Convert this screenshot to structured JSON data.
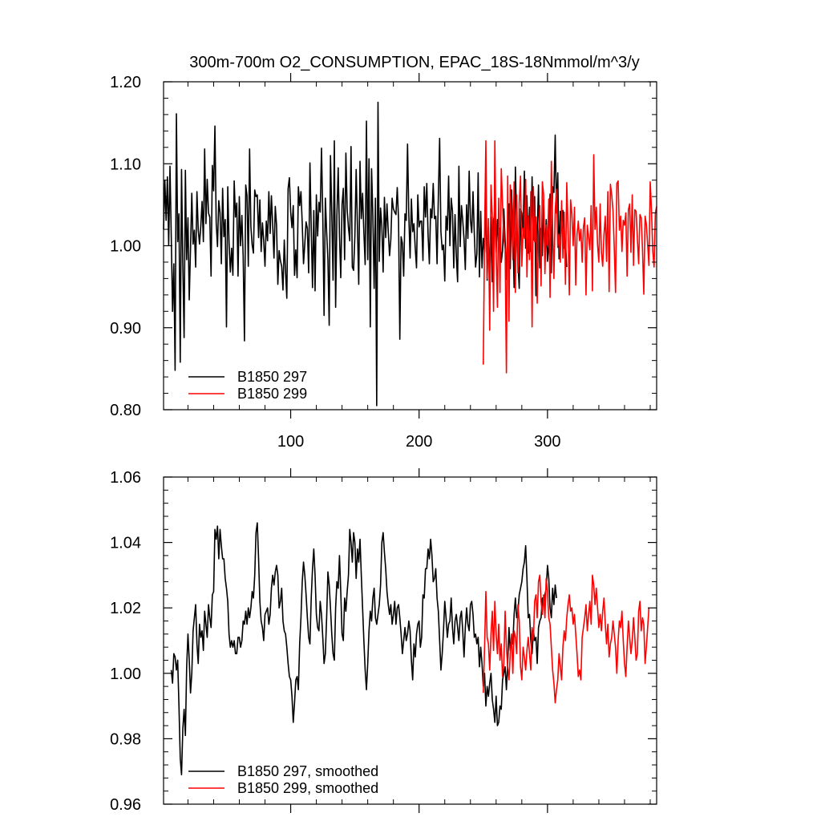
{
  "chart_data": [
    {
      "type": "line",
      "title": "300m-700m O2_CONSUMPTION, EPAC_18S-18Nmmol/m^3/y",
      "xlabel": "",
      "ylabel": "",
      "xlim": [
        1,
        385
      ],
      "ylim": [
        0.8,
        1.2
      ],
      "yticks": [
        "0.80",
        "0.90",
        "1.00",
        "1.10",
        "1.20"
      ],
      "xticks": [
        "100",
        "200",
        "300"
      ],
      "legend_position": "bottom-left",
      "series": [
        {
          "name": "B1850 297",
          "color": "#000000",
          "x_start": 1,
          "values": [
            1.02,
            1.08,
            1.031,
            1.084,
            1.001,
            1.097,
            1.012,
            0.92,
            0.978,
            0.848,
            1.161,
            1.005,
            1.039,
            0.858,
            1.093,
            0.978,
            0.888,
            1.092,
            0.983,
            1.034,
            0.934,
            0.997,
            1.064,
            1.002,
            1.019,
            0.974,
            1.066,
            1.02,
            1.002,
            1.024,
            1.054,
            1.005,
            1.118,
            1.027,
            1.081,
            1.04,
            1.035,
            0.963,
            1.098,
            1.067,
            1.146,
            1.028,
            0.999,
            1.055,
            1.04,
            0.978,
            1.07,
            1.011,
            1.032,
            0.901,
            1.072,
            1.004,
            0.968,
            0.997,
            0.964,
            1.079,
            1.035,
            1.052,
            0.963,
            1.06,
            1.0,
            1.037,
            0.987,
            0.884,
            1.074,
            1.061,
            0.975,
            1.118,
            1.023,
            1.001,
            0.991,
            1.068,
            1.06,
            1.062,
            1.01,
            1.056,
            0.993,
            1.028,
            1.006,
            0.975,
            1.03,
            1.006,
            1.066,
            1.015,
            1.061,
            1.025,
            0.985,
            1.048,
            1.025,
            0.953,
            0.994,
            0.982,
            0.975,
            0.946,
            1.007,
            0.968,
            0.936,
            1.07,
            1.083,
            1.041,
            1.022,
            1.049,
            0.964,
            0.995,
            0.961,
            1.072,
            1.049,
            1.066,
            1.027,
            0.978,
            1.002,
            1.029,
            1.021,
            0.967,
            1.101,
            1.023,
            0.949,
            1.043,
            0.945,
            1.062,
            1.012,
            1.053,
            1.041,
            1.119,
            1.037,
            0.915,
            1.058,
            1.017,
            0.983,
            0.903,
            1.11,
            1.04,
            0.958,
            1.128,
            0.925,
            1.037,
            1.095,
            1.013,
            0.961,
            1.05,
            1.07,
            0.983,
            1.113,
            1.044,
            1.022,
            1.006,
            1.121,
            0.974,
            0.97,
            1.012,
            1.093,
            1.022,
            0.953,
            1.103,
            1.033,
            1.064,
            1.016,
            0.977,
            1.152,
            0.983,
            1.106,
            0.901,
            1.094,
            1.037,
            0.948,
            1.058,
            0.805,
            1.175,
            0.981,
            1.046,
            1.024,
            0.968,
            1.059,
            1.01,
            1.051,
            1.017,
            0.988,
            1.008,
            1.058,
            1.045,
            1.041,
            1.038,
            1.071,
            1.032,
            0.886,
            1.011,
            1.003,
            0.963,
            1.039,
            1.031,
            1.124,
            1.037,
            0.985,
            1.057,
            1.017,
            1.027,
            0.997,
            0.973,
            1.062,
            1.023,
            1.03,
            1.03,
            0.982,
            1.072,
            1.035,
            1.076,
            1.013,
            0.978,
            1.045,
            1.034,
            1.076,
            1.033,
            1.036,
            0.978,
            1.06,
            1.131,
            1.017,
            0.995,
            1.001,
            0.957,
            1.036,
            1.019,
            1.085,
            1.0,
            1.058,
            1.042,
            0.973,
            1.038,
            0.987,
            0.956,
            1.097,
            0.999,
            1.049,
            1.031,
            1.008,
            0.971,
            1.05,
            1.009,
            1.091,
            1.031,
            1.016,
            1.066,
            1.015,
            0.974,
            0.99,
            1.089,
            0.962,
            1.042,
            0.973,
            1.009,
            0.992,
            1.059,
            0.958,
            1.024,
            0.958,
            1.035,
            0.956,
            1.031,
            1.04,
            0.992,
            1.032,
            0.999,
            1.021,
            0.98,
            0.994,
            1.045,
            1.006,
            0.959,
            1.029,
            1.051,
            0.972,
            1.068,
            1.02,
            0.949,
            1.096,
            1.025,
            0.98,
            0.948,
            1.045,
            1.04,
            1.014,
            1.091,
            0.997,
            1.061,
            0.991,
            1.047,
            0.993,
            1.084,
            1.007,
            1.06,
            0.939,
            1.016,
            1.074,
            0.973,
            1.021,
            0.988,
            1.056,
            0.986,
            1.032,
            0.981,
            1.002,
            1.063,
            0.967,
            1.072,
            1.065,
            1.135,
            1.04,
            1.089,
            0.984,
            1.042,
            1.027,
            1.043,
            0.997,
            1.006,
            0.974
          ]
        },
        {
          "name": "B1850 299",
          "color": "#ff0000",
          "x_start": 250,
          "values": [
            0.855,
            1.012,
            1.128,
            0.96,
            1.033,
            0.897,
            1.074,
            1.035,
            0.92,
            1.128,
            0.995,
            0.925,
            1.058,
            0.943,
            1.094,
            1.051,
            1.009,
            0.996,
            0.845,
            1.085,
            0.908,
            1.074,
            1.04,
            0.983,
            1.078,
            0.943,
            1.062,
            0.967,
            1.053,
            1.085,
            0.975,
            1.021,
            1.009,
            1.081,
            0.962,
            1.036,
            0.983,
            1.066,
            0.901,
            1.072,
            1.005,
            1.035,
            0.93,
            1.013,
            1.049,
            0.951,
            1.078,
            1.062,
            0.966,
            1.025,
            1.001,
            1.057,
            0.937,
            1.103,
            1.02,
            0.96,
            1.043,
            1.069,
            0.998,
            1.014,
            0.98,
            1.055,
            0.985,
            1.041,
            0.953,
            1.077,
            1.021,
            0.94,
            1.056,
            1.039,
            1.0,
            1.047,
            0.952,
            1.014,
            1.03,
            1.006,
            1.02,
            0.98,
            1.023,
            1.034,
            0.94,
            1.025,
            1.011,
            0.995,
            1.049,
            0.945,
            1.111,
            1.02,
            1.047,
            1.001,
            0.98,
            1.051,
            0.992,
            0.975,
            1.014,
            1.036,
            0.981,
            1.066,
            0.944,
            1.075,
            1.062,
            1.043,
            0.997,
            0.943,
            1.076,
            1.079,
            1.019,
            1.036,
            0.993,
            1.031,
            1.025,
            1.04,
            0.963,
            1.044,
            1.051,
            0.992,
            1.062,
            0.976,
            1.044,
            1.042,
            1.008,
            0.978,
            1.038,
            1.034,
            0.995,
            0.941,
            1.036,
            1.026,
            1.002,
            0.976,
            1.078,
            1.043,
            0.993,
            0.974,
            1.04,
            1.048
          ]
        }
      ]
    },
    {
      "type": "line",
      "title": "",
      "xlabel": "",
      "ylabel": "",
      "xlim": [
        1,
        385
      ],
      "ylim": [
        0.96,
        1.06
      ],
      "yticks": [
        "0.96",
        "0.98",
        "1.00",
        "1.02",
        "1.04",
        "1.06"
      ],
      "xticks": [],
      "legend_position": "bottom-left",
      "series": [
        {
          "name": "B1850 297, smoothed",
          "color": "#000000",
          "x_start": 7,
          "values": [
            1.001,
            0.997,
            1.006,
            1.005,
            1.001,
            1.004,
            0.99,
            0.974,
            0.969,
            0.983,
            0.989,
            0.981,
            1.002,
            1.012,
            1.004,
            0.994,
            1.0,
            1.013,
            1.017,
            1.021,
            1.009,
            1.003,
            1.015,
            1.011,
            1.013,
            1.007,
            1.019,
            1.015,
            1.011,
            1.021,
            1.017,
            1.014,
            1.024,
            1.025,
            1.044,
            1.041,
            1.045,
            1.035,
            1.044,
            1.039,
            1.035,
            1.035,
            1.029,
            1.026,
            1.022,
            1.012,
            1.008,
            1.01,
            1.008,
            1.01,
            1.006,
            1.006,
            1.011,
            1.011,
            1.008,
            1.01,
            1.016,
            1.015,
            1.019,
            1.015,
            1.02,
            1.017,
            1.02,
            1.025,
            1.023,
            1.03,
            1.043,
            1.046,
            1.035,
            1.022,
            1.016,
            1.014,
            1.01,
            1.018,
            1.019,
            1.02,
            1.015,
            1.018,
            1.026,
            1.03,
            1.027,
            1.031,
            1.033,
            1.03,
            1.02,
            1.022,
            1.026,
            1.016,
            1.013,
            1.012,
            1.008,
            1.003,
            0.999,
            0.998,
            0.993,
            0.985,
            0.991,
            0.998,
            0.999,
            0.995,
            1.009,
            1.017,
            1.028,
            1.034,
            1.03,
            1.024,
            1.017,
            1.011,
            1.009,
            1.023,
            1.032,
            1.038,
            1.03,
            1.018,
            1.014,
            1.013,
            1.022,
            1.018,
            1.011,
            1.003,
            1.006,
            1.017,
            1.031,
            1.027,
            1.02,
            1.012,
            1.006,
            1.004,
            1.02,
            1.028,
            1.026,
            1.036,
            1.025,
            1.012,
            1.01,
            1.023,
            1.019,
            1.025,
            1.03,
            1.044,
            1.04,
            1.034,
            1.043,
            1.04,
            1.029,
            1.038,
            1.034,
            1.041,
            1.03,
            1.02,
            1.01,
            1.001,
            0.995,
            1.003,
            1.013,
            1.019,
            1.016,
            1.023,
            1.026,
            1.017,
            1.015,
            1.018,
            1.021,
            1.027,
            1.04,
            1.043,
            1.037,
            1.032,
            1.025,
            1.021,
            1.018,
            1.021,
            1.015,
            1.018,
            1.022,
            1.015,
            1.02,
            1.021,
            1.017,
            1.012,
            1.006,
            1.01,
            1.014,
            1.01,
            1.012,
            1.016,
            1.013,
            1.004,
            0.998,
            1.009,
            1.005,
            1.012,
            1.015,
            1.016,
            1.008,
            1.011,
            1.024,
            1.023,
            1.032,
            1.032,
            1.038,
            1.035,
            1.041,
            1.036,
            1.028,
            1.029,
            1.032,
            1.023,
            1.019,
            1.01,
            1.001,
            1.006,
            1.013,
            1.022,
            1.017,
            1.011,
            1.015,
            1.016,
            1.023,
            1.014,
            1.009,
            1.016,
            1.018,
            1.014,
            1.01,
            1.017,
            1.019,
            1.013,
            1.005,
            1.014,
            1.02,
            1.015,
            1.013,
            1.021,
            1.022,
            1.018,
            1.011,
            1.012,
            1.009,
            1.011,
            1.002,
            1.008,
            1.003,
            0.996,
            1.0,
            0.99,
            0.996,
            0.993,
            0.997,
            1.0,
            0.992,
            0.989,
            0.985,
            0.993,
            0.984,
            0.985,
            0.99,
            0.989,
            0.998,
            1.0,
            1.002,
            0.995,
            1.003,
            1.014,
            1.007,
            1.01,
            1.009,
            1.018,
            1.023,
            1.017,
            1.019,
            1.024,
            1.026,
            1.028,
            1.032,
            1.034,
            1.039,
            1.029,
            1.017,
            1.018,
            1.01,
            1.006,
            1.013,
            1.01,
            1.011,
            1.003,
            1.014,
            1.016,
            1.017,
            1.023,
            1.021,
            1.024,
            1.026,
            1.033,
            1.029,
            1.02,
            1.017,
            1.026,
            1.021,
            1.027,
            1.023
          ]
        },
        {
          "name": "B1850 299, smoothed",
          "color": "#ff0000",
          "x_start": 250,
          "values": [
            0.994,
            1.008,
            1.025,
            1.011,
            1.009,
            1.001,
            1.012,
            1.019,
            1.007,
            1.022,
            1.012,
            1.006,
            1.015,
            1.004,
            1.009,
            0.999,
            1.003,
            1.019,
            1.008,
            1.002,
            0.998,
            1.006,
            1.012,
            1.0,
            1.013,
            1.011,
            1.006,
            1.021,
            1.016,
            1.002,
            0.998,
            1.008,
            1.005,
            1.001,
            1.007,
            1.011,
            1.006,
            1.001,
            1.014,
            1.01,
            1.022,
            1.024,
            1.017,
            1.028,
            1.03,
            1.022,
            1.018,
            1.024,
            1.017,
            1.029,
            1.025,
            1.017,
            1.015,
            1.008,
            1.001,
            0.997,
            0.991,
            0.995,
            0.998,
            1.006,
            1.002,
            0.998,
            1.008,
            1.013,
            1.01,
            1.017,
            1.021,
            1.024,
            1.019,
            1.02,
            1.015,
            1.018,
            1.012,
            1.006,
            0.999,
            1.001,
            0.998,
            1.011,
            1.014,
            1.017,
            1.021,
            1.013,
            1.018,
            1.022,
            1.015,
            1.03,
            1.027,
            1.021,
            1.026,
            1.02,
            1.014,
            1.018,
            1.013,
            1.019,
            1.023,
            1.015,
            1.009,
            1.015,
            1.005,
            1.009,
            1.011,
            1.016,
            1.012,
            1.008,
            1.0,
            1.01,
            1.016,
            1.014,
            1.019,
            1.01,
            1.003,
            0.999,
            1.008,
            1.016,
            1.011,
            1.006,
            1.01,
            1.017,
            1.011,
            1.004,
            1.006,
            1.019,
            1.022,
            1.013,
            1.017,
            1.015,
            1.003,
            1.008,
            1.014,
            1.02
          ]
        }
      ]
    }
  ]
}
